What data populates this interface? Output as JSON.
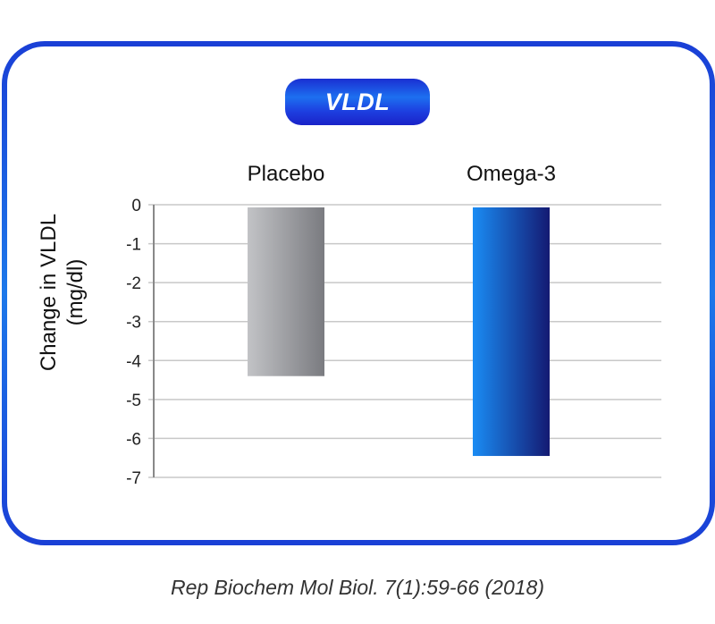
{
  "chart_data": {
    "type": "bar",
    "title": "VLDL",
    "ylabel": "Change in VLDL (mg/dl)",
    "ylabel_lines": [
      "Change in VLDL",
      "(mg/dl)"
    ],
    "categories": [
      "Placebo",
      "Omega-3"
    ],
    "values": [
      -4.4,
      -6.45
    ],
    "ylim": [
      -7,
      0
    ],
    "yticks": [
      0,
      -1,
      -2,
      -3,
      -4,
      -5,
      -6,
      -7
    ],
    "ytick_labels": [
      "0",
      "-1",
      "-2",
      "-3",
      "-4",
      "-5",
      "-6",
      "-7"
    ],
    "grid": true,
    "bar_colors": [
      {
        "light": "#c2c3c6",
        "dark": "#7a7b80"
      },
      {
        "light": "#1a8cf4",
        "dark": "#141a72"
      }
    ]
  },
  "citation": "Rep Biochem Mol Biol. 7(1):59-66 (2018)",
  "colors": {
    "frame": "#1c5fe6",
    "pill": "#1a3fd6",
    "grid": "#c8c8c8",
    "axis": "#888888"
  }
}
